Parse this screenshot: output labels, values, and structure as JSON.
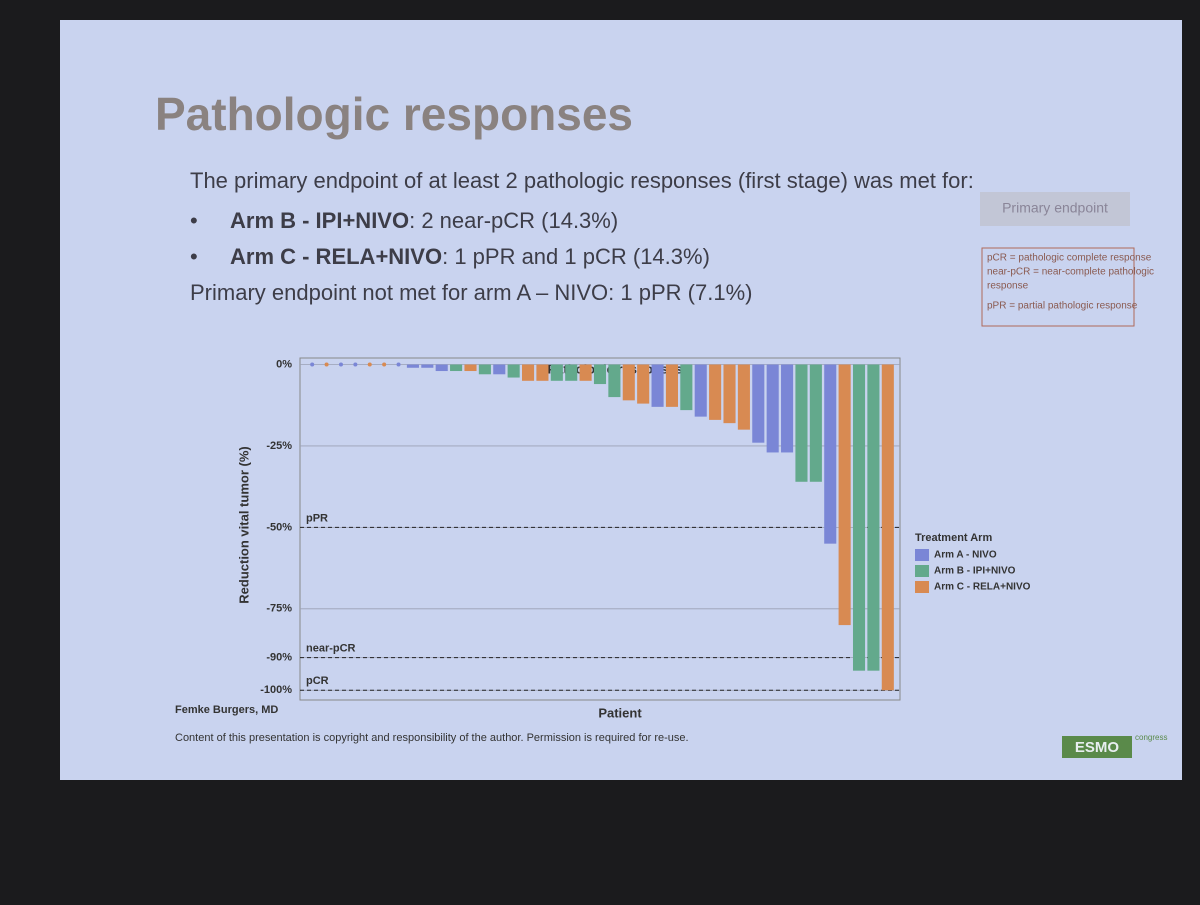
{
  "slide": {
    "title": "Pathologic responses",
    "intro": "The primary endpoint of at least 2 pathologic responses (first stage) was met for:",
    "bullets": [
      {
        "arm": "Arm B - IPI+NIVO",
        "text": ": 2 near-pCR (14.3%)"
      },
      {
        "arm": "Arm C - RELA+NIVO",
        "text": ": 1 pPR and 1 pCR (14.3%)"
      }
    ],
    "not_met": "Primary endpoint not met for arm A – NIVO: 1 pPR (7.1%)",
    "badge": "Primary endpoint",
    "definitions": [
      "pCR = pathologic complete response",
      "near-pCR = near-complete pathologic",
      "response",
      "pPR = partial pathologic response"
    ],
    "author": "Femke Burgers, MD",
    "copyright": "Content of this presentation is copyright and responsibility of the author. Permission is required for re-use.",
    "logo": "ESMO",
    "logo_sub": "congress"
  },
  "chart_data": {
    "type": "waterfall",
    "title": "Pathologic responses",
    "ylabel": "Reduction vital tumor (%)",
    "xlabel": "Patient",
    "legend_title": "Treatment Arm",
    "legend": "right",
    "ylim": [
      -103,
      2
    ],
    "yticks": [
      {
        "value": 0,
        "label": "0%"
      },
      {
        "value": -25,
        "label": "-25%"
      },
      {
        "value": -50,
        "label": "-50%"
      },
      {
        "value": -75,
        "label": "-75%"
      },
      {
        "value": -90,
        "label": "-90%"
      },
      {
        "value": -100,
        "label": "-100%"
      }
    ],
    "reference_lines": [
      {
        "value": -50,
        "label": "pPR"
      },
      {
        "value": -90,
        "label": "near-pCR"
      },
      {
        "value": -100,
        "label": "pCR"
      }
    ],
    "categories": [
      null,
      null,
      null,
      null,
      null,
      null,
      null,
      null,
      null,
      null,
      null,
      null,
      null,
      null,
      null,
      null,
      null,
      null,
      null,
      null,
      null,
      null,
      null,
      null,
      null,
      null,
      null,
      null,
      null,
      null,
      null,
      null,
      null,
      null,
      null,
      null,
      null,
      null,
      null,
      null,
      null
    ],
    "series": [
      {
        "name": "Arm A - NIVO",
        "color": "#7a86d6",
        "values": [
          0,
          null,
          0,
          0,
          null,
          null,
          0,
          -1,
          -1,
          -2,
          null,
          null,
          null,
          -3,
          null,
          null,
          null,
          null,
          null,
          null,
          null,
          null,
          null,
          null,
          -13,
          null,
          null,
          -16,
          null,
          null,
          null,
          -24,
          -27,
          -27,
          null,
          null,
          -55,
          null,
          null,
          null,
          null
        ]
      },
      {
        "name": "Arm B - IPI+NIVO",
        "color": "#63a98c",
        "values": [
          null,
          null,
          null,
          null,
          null,
          null,
          null,
          null,
          null,
          null,
          -2,
          null,
          -3,
          null,
          -4,
          null,
          null,
          -5,
          -5,
          null,
          -6,
          -10,
          null,
          null,
          null,
          null,
          -14,
          null,
          null,
          null,
          null,
          null,
          null,
          null,
          -36,
          -36,
          null,
          null,
          -94,
          -94,
          null
        ]
      },
      {
        "name": "Arm C - RELA+NIVO",
        "color": "#d88a52",
        "values": [
          null,
          0,
          null,
          null,
          0,
          0,
          null,
          null,
          null,
          null,
          null,
          -2,
          null,
          null,
          null,
          -5,
          -5,
          null,
          null,
          -5,
          null,
          null,
          -11,
          -12,
          null,
          -13,
          null,
          null,
          -17,
          -18,
          -20,
          null,
          null,
          null,
          null,
          null,
          null,
          -80,
          null,
          null,
          -100
        ]
      }
    ]
  }
}
